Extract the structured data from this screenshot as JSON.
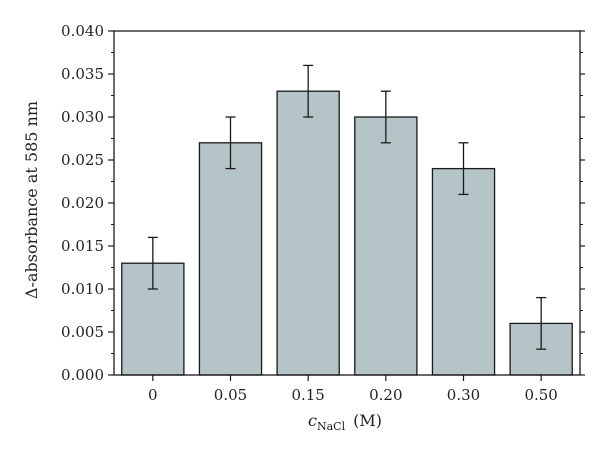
{
  "chart_data": {
    "type": "bar",
    "categories": [
      "0",
      "0.05",
      "0.15",
      "0.20",
      "0.30",
      "0.50"
    ],
    "values": [
      0.013,
      0.027,
      0.033,
      0.03,
      0.024,
      0.006
    ],
    "errors": [
      0.003,
      0.003,
      0.003,
      0.003,
      0.003,
      0.003
    ],
    "ylim": [
      0,
      0.04
    ],
    "yticks": [
      "0.000",
      "0.005",
      "0.010",
      "0.015",
      "0.020",
      "0.025",
      "0.030",
      "0.035",
      "0.040"
    ],
    "ytick_values": [
      0,
      0.005,
      0.01,
      0.015,
      0.02,
      0.025,
      0.03,
      0.035,
      0.04
    ],
    "ylabel": "Δ-absorbance at 585 nm",
    "xlabel": {
      "main": "c",
      "sub": "NaCl",
      "unit": "(M)"
    },
    "colors": {
      "bar_fill": "#b5c4c7",
      "bar_stroke": "#1a1a1a",
      "axis": "#1a1a1a"
    },
    "grid": false,
    "legend": "none"
  }
}
